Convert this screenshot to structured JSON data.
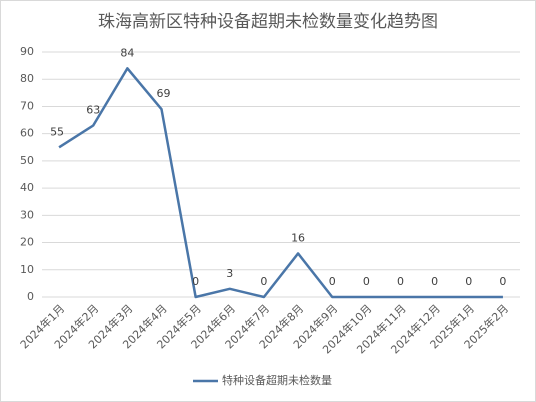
{
  "chart_data": {
    "type": "line",
    "title": "珠海高新区特种设备超期未检数量变化趋势图",
    "categories": [
      "2024年1月",
      "2024年2月",
      "2024年3月",
      "2024年4月",
      "2024年5月",
      "2024年6月",
      "2024年7月",
      "2024年8月",
      "2024年9月",
      "2024年10月",
      "2024年11月",
      "2024年12月",
      "2025年1月",
      "2025年2月"
    ],
    "series": [
      {
        "name": "特种设备超期未检数量",
        "color": "#4a76a8",
        "values": [
          55,
          63,
          84,
          69,
          0,
          3,
          0,
          16,
          0,
          0,
          0,
          0,
          0,
          0
        ]
      }
    ],
    "ylim": [
      0,
      90
    ],
    "yticks": [
      0,
      10,
      20,
      30,
      40,
      50,
      60,
      70,
      80,
      90
    ],
    "grid": true,
    "legend": "bottom"
  }
}
